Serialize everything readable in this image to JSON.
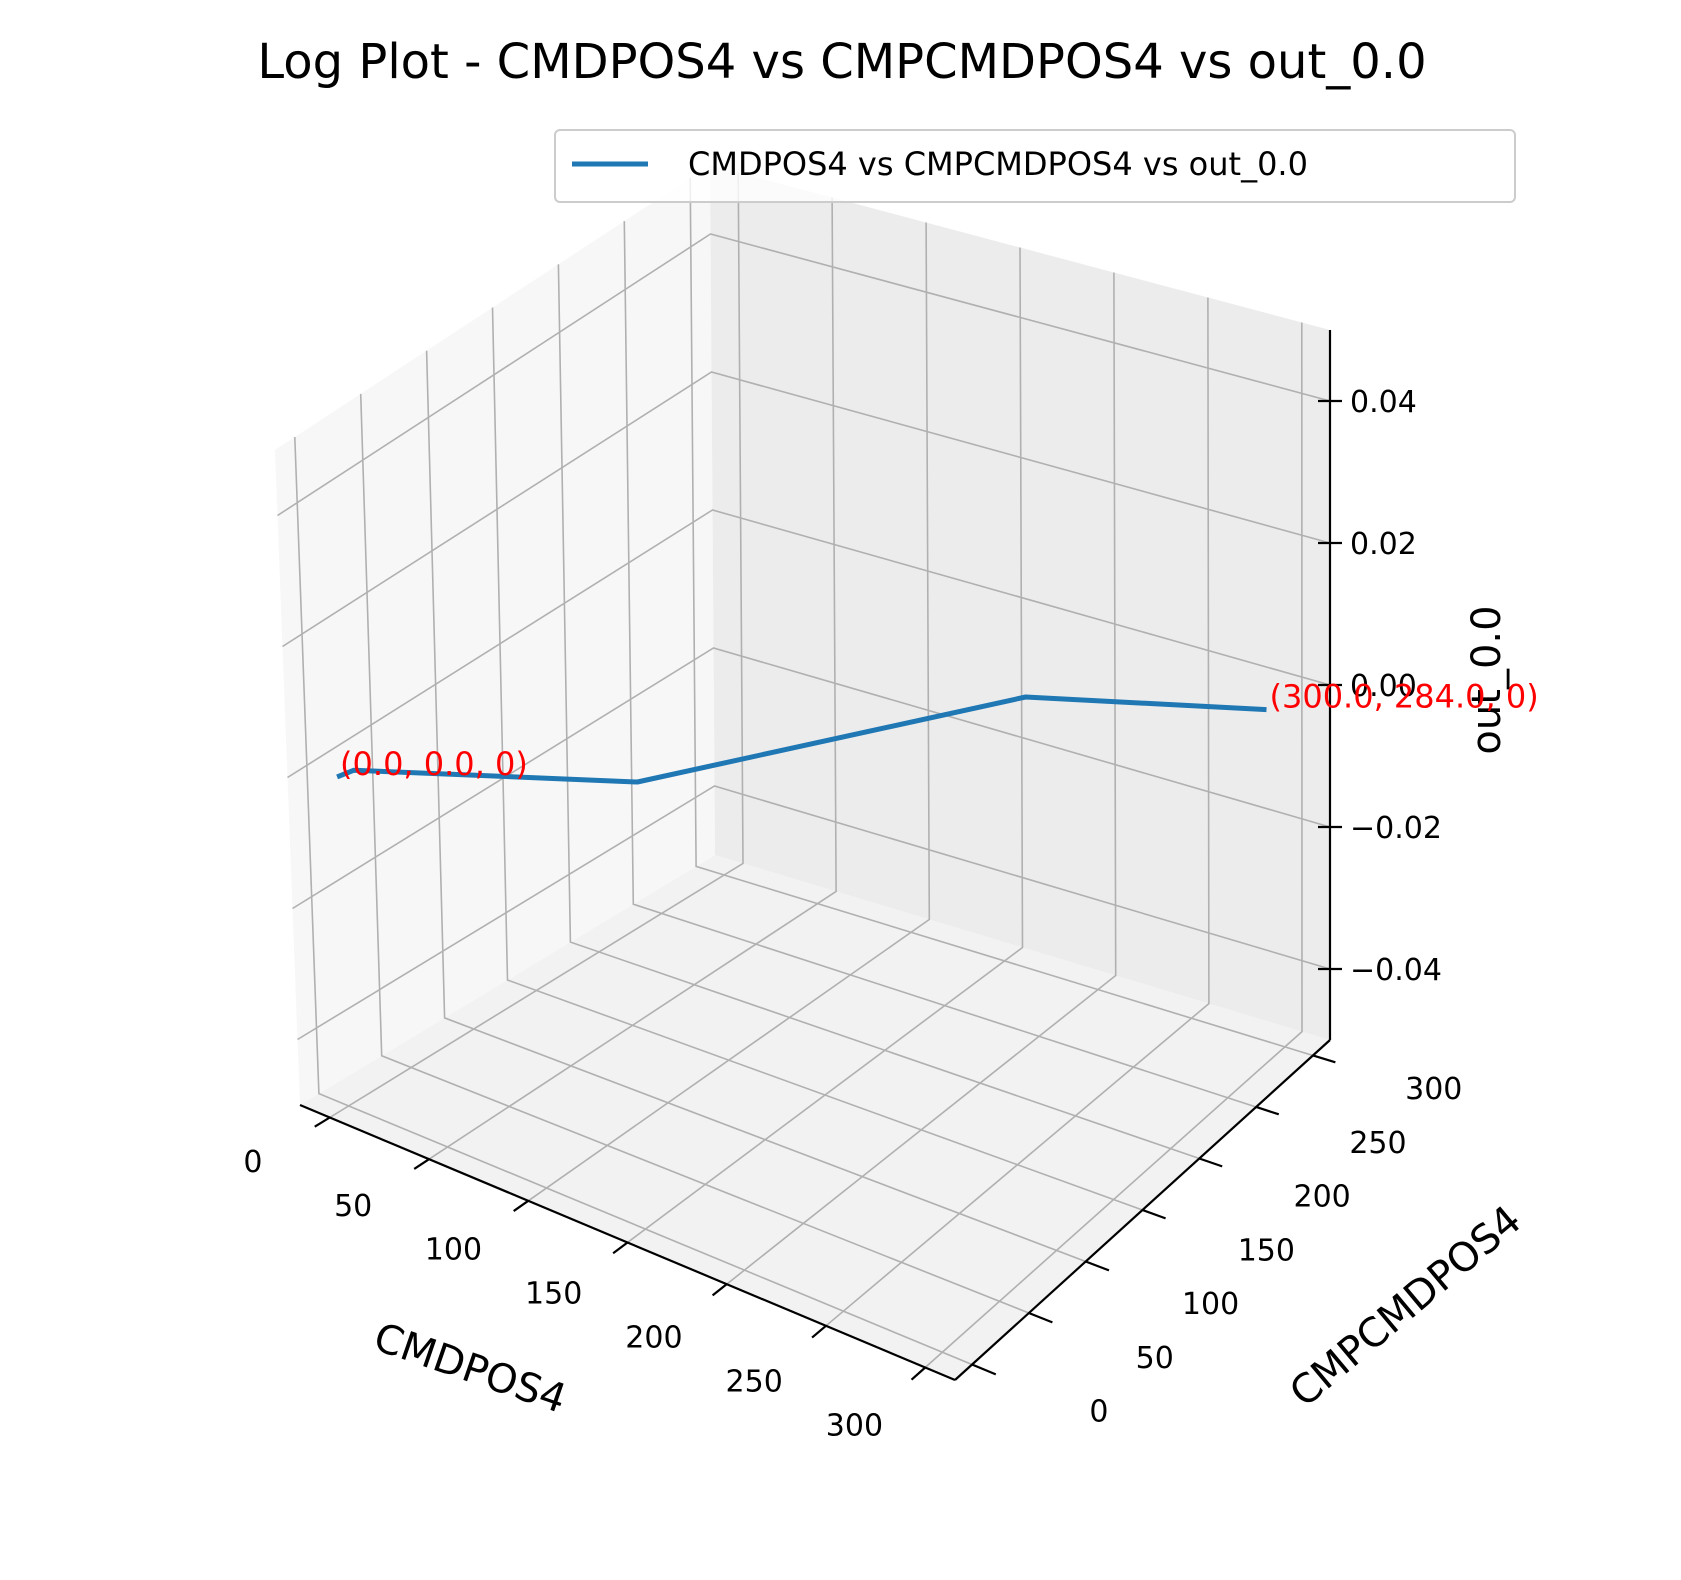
{
  "chart_data": {
    "type": "line",
    "projection": "3d",
    "title": "Log Plot - CMDPOS4 vs CMPCMDPOS4 vs out_0.0",
    "xlabel": "CMDPOS4",
    "ylabel": "CMPCMDPOS4",
    "zlabel": "out_0.0",
    "xlim": [
      -15,
      315
    ],
    "ylim": [
      -15,
      315
    ],
    "zlim": [
      -0.05,
      0.05
    ],
    "x_ticks": [
      0,
      50,
      100,
      150,
      200,
      250,
      300
    ],
    "y_ticks": [
      0,
      50,
      100,
      150,
      200,
      250,
      300
    ],
    "z_ticks": [
      -0.04,
      -0.02,
      0.0,
      0.02,
      0.04
    ],
    "x_tick_labels": [
      "0",
      "50",
      "100",
      "150",
      "200",
      "250",
      "300"
    ],
    "y_tick_labels": [
      "0",
      "50",
      "100",
      "150",
      "200",
      "250",
      "300"
    ],
    "z_tick_labels": [
      "−0.04",
      "−0.02",
      "0.00",
      "0.02",
      "0.04"
    ],
    "grid": true,
    "legend_position": "top-right",
    "series": [
      {
        "name": "CMDPOS4 vs CMPCMDPOS4 vs out_0.0",
        "color": "#1f77b4",
        "x": [
          0,
          2,
          100,
          200,
          300
        ],
        "y": [
          0,
          10,
          80,
          240,
          284
        ],
        "z": [
          0,
          0,
          0,
          0,
          0
        ]
      }
    ],
    "annotations": [
      {
        "text": "(0.0, 0.0, 0)",
        "x": 0,
        "y": 0,
        "z": 0,
        "color": "#ff0000"
      },
      {
        "text": "(300.0, 284.0, 0)",
        "x": 300,
        "y": 284,
        "z": 0,
        "color": "#ff0000"
      }
    ]
  }
}
